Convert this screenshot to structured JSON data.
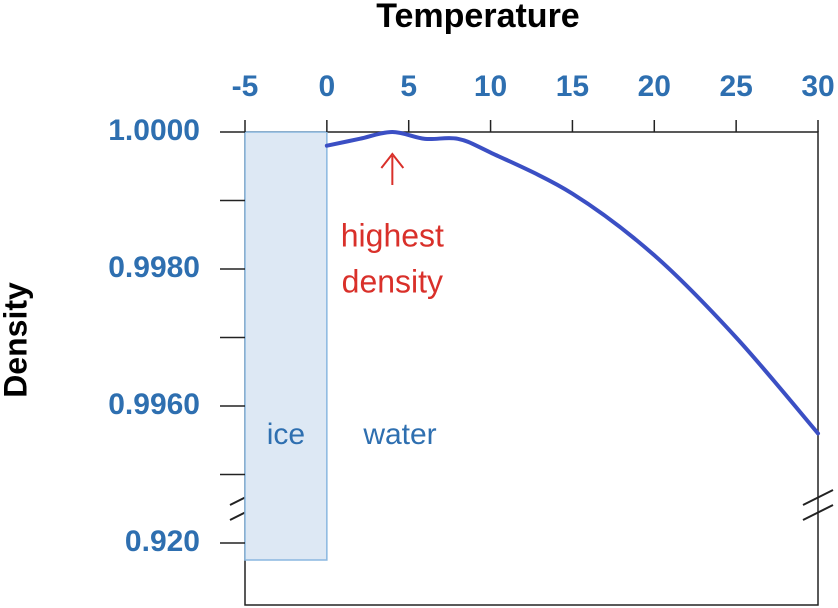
{
  "chart_data": {
    "type": "line",
    "title": "Temperature",
    "y_label": "Density",
    "x": [
      0,
      2,
      4,
      6,
      8,
      10,
      15,
      20,
      25,
      30
    ],
    "series": [
      {
        "name": "water",
        "color": "#3b4fc4",
        "values": [
          0.9998,
          0.9999,
          1.0,
          0.9999,
          0.9999,
          0.9997,
          0.9991,
          0.9982,
          0.997,
          0.9956
        ]
      }
    ],
    "xlim": [
      -5,
      30
    ],
    "xticks": [
      -5,
      0,
      5,
      10,
      15,
      20,
      25,
      30
    ],
    "ylim": [
      0.92,
      1.0
    ],
    "yticks": [
      {
        "value": 0.92,
        "label": "0.920"
      },
      {
        "value": 0.996,
        "label": "0.9960"
      },
      {
        "value": 0.998,
        "label": "0.9980"
      },
      {
        "value": 1.0,
        "label": "1.0000"
      }
    ],
    "yminor": [
      0.995,
      0.997,
      0.999
    ],
    "y_break": true,
    "regions": [
      {
        "label": "ice",
        "from": -5,
        "to": 0
      }
    ],
    "annotations": [
      {
        "text": [
          "highest",
          "density"
        ],
        "x": 4,
        "color": "#d9302a"
      }
    ],
    "tick_color": "#2e6fb0"
  }
}
